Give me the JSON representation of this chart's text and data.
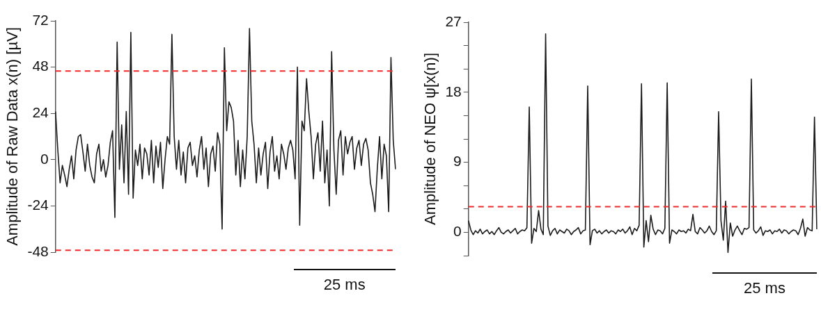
{
  "chart_data": [
    {
      "type": "line",
      "ylabel": "Amplitude of Raw Data x(n) [µV]",
      "tick_labels": "y",
      "grid": false,
      "legend": false,
      "categories": [
        null,
        null,
        null,
        null,
        null,
        null,
        null,
        null,
        null,
        null,
        null,
        null,
        null,
        null,
        null,
        null,
        null,
        null,
        null,
        null,
        null,
        null,
        null,
        null,
        null,
        null,
        null,
        null,
        null,
        null,
        null,
        null,
        null,
        null,
        null,
        null,
        null,
        null,
        null,
        null,
        null,
        null,
        null,
        null,
        null,
        null,
        null,
        null,
        null,
        null,
        null,
        null,
        null,
        null,
        null,
        null,
        null,
        null,
        null,
        null,
        null,
        null,
        null,
        null,
        null,
        null,
        null,
        null,
        null,
        null,
        null,
        null,
        null,
        null,
        null,
        null,
        null,
        null,
        null,
        null,
        null,
        null,
        null,
        null,
        null,
        null,
        null,
        null,
        null,
        null,
        null,
        null,
        null,
        null,
        null,
        null,
        null,
        null,
        null,
        null,
        null,
        null,
        null,
        null,
        null,
        null,
        null,
        null,
        null,
        null,
        null,
        null,
        null,
        null,
        null,
        null,
        null,
        null,
        null,
        null,
        null,
        null,
        null,
        null,
        null,
        null,
        null,
        null,
        null,
        null,
        null,
        null,
        null,
        null,
        null,
        null,
        null,
        null,
        null,
        null,
        null,
        null,
        null,
        null,
        null,
        null,
        null,
        null,
        null,
        null
      ],
      "series": [
        {
          "color": "#1a1a1a",
          "values": [
            25,
            5,
            -12,
            -3,
            -8,
            -14,
            -5,
            2,
            -10,
            5,
            12,
            13,
            4,
            -6,
            8,
            -3,
            -9,
            -12,
            3,
            8,
            -6,
            0,
            -9,
            -3,
            9,
            15,
            -30,
            61,
            -5,
            18,
            -12,
            25,
            -18,
            66,
            -20,
            5,
            -3,
            8,
            -10,
            6,
            3,
            -8,
            10,
            -12,
            7,
            -4,
            9,
            -15,
            0,
            12,
            8,
            65,
            12,
            -5,
            10,
            -8,
            4,
            -12,
            6,
            9,
            -3,
            2,
            -9,
            5,
            12,
            -5,
            6,
            -14,
            3,
            7,
            -6,
            14,
            8,
            -36,
            58,
            15,
            30,
            27,
            20,
            -8,
            10,
            -14,
            5,
            -10,
            12,
            68,
            20,
            8,
            -12,
            6,
            -8,
            3,
            9,
            -15,
            4,
            12,
            -6,
            2,
            -10,
            8,
            3,
            -5,
            6,
            10,
            5,
            -10,
            48,
            -34,
            20,
            15,
            42,
            25,
            12,
            -10,
            8,
            14,
            -6,
            20,
            -12,
            5,
            -24,
            56,
            5,
            -18,
            10,
            15,
            -8,
            12,
            3,
            9,
            12,
            -5,
            6,
            10,
            -3,
            8,
            11,
            5,
            -12,
            -18,
            -27,
            -5,
            12,
            -10,
            8,
            2,
            -27,
            53,
            10,
            -5
          ]
        }
      ],
      "ylim": [
        -48,
        72
      ],
      "yticks": [
        -48,
        -24,
        0,
        24,
        48,
        72
      ],
      "ref_lines": [
        {
          "axis": "y",
          "value": 46,
          "color": "#ee2a2a",
          "line_style": "dashed"
        },
        {
          "axis": "y",
          "value": -47,
          "color": "#ee2a2a",
          "line_style": "dashed"
        }
      ],
      "annotations": [
        "25 ms"
      ]
    },
    {
      "type": "line",
      "ylabel": "Amplitude of NEO ψ[x(n)]",
      "tick_labels": "y",
      "grid": false,
      "legend": false,
      "categories": [
        null,
        null,
        null,
        null,
        null,
        null,
        null,
        null,
        null,
        null,
        null,
        null,
        null,
        null,
        null,
        null,
        null,
        null,
        null,
        null,
        null,
        null,
        null,
        null,
        null,
        null,
        null,
        null,
        null,
        null,
        null,
        null,
        null,
        null,
        null,
        null,
        null,
        null,
        null,
        null,
        null,
        null,
        null,
        null,
        null,
        null,
        null,
        null,
        null,
        null,
        null,
        null,
        null,
        null,
        null,
        null,
        null,
        null,
        null,
        null,
        null,
        null,
        null,
        null,
        null,
        null,
        null,
        null,
        null,
        null,
        null,
        null,
        null,
        null,
        null,
        null,
        null,
        null,
        null,
        null,
        null,
        null,
        null,
        null,
        null,
        null,
        null,
        null,
        null,
        null,
        null,
        null,
        null,
        null,
        null,
        null,
        null,
        null,
        null,
        null,
        null,
        null,
        null,
        null,
        null,
        null,
        null,
        null,
        null,
        null,
        null,
        null,
        null,
        null,
        null,
        null,
        null,
        null,
        null,
        null,
        null,
        null,
        null,
        null,
        null,
        null,
        null,
        null,
        null,
        null,
        null,
        null,
        null,
        null,
        null,
        null,
        null,
        null,
        null,
        null,
        null,
        null,
        null,
        null,
        null,
        null,
        null,
        null,
        null,
        null
      ],
      "series": [
        {
          "color": "#1a1a1a",
          "values": [
            1.5,
            0.3,
            -0.3,
            0.2,
            -0.1,
            0.4,
            -0.2,
            0.1,
            0.3,
            -0.2,
            0.1,
            -0.3,
            0.2,
            0.6,
            0,
            -0.2,
            0.1,
            0.3,
            -0.1,
            0.2,
            0.5,
            -0.2,
            0.1,
            0.3,
            0.2,
            0.6,
            16.1,
            -1.4,
            0.5,
            0.1,
            2.8,
            0.4,
            -0.3,
            25.5,
            0.8,
            -0.4,
            0.2,
            0.5,
            -0.2,
            0.3,
            0.1,
            -0.1,
            0.4,
            0.2,
            -0.3,
            0.1,
            0.3,
            0.6,
            -0.2,
            0.2,
            0.3,
            18.8,
            -1.6,
            0.2,
            0.4,
            -0.1,
            0.2,
            -0.2,
            0.1,
            0.3,
            -0.1,
            0.2,
            0.1,
            -0.2,
            0.3,
            0.1,
            0.4,
            -0.1,
            0.2,
            0.7,
            -0.3,
            0.5,
            0.2,
            0.9,
            19.1,
            -1.9,
            1.5,
            -1.2,
            2.2,
            0.4,
            -0.3,
            0.3,
            0.2,
            -0.2,
            0.5,
            19.2,
            -1.4,
            0.3,
            0.1,
            -0.2,
            0.3,
            0.1,
            0.2,
            -0.1,
            0.4,
            0.2,
            2.3,
            0.1,
            -0.2,
            0.6,
            0.3,
            -0.1,
            0.2,
            0.8,
            0.1,
            -0.3,
            0.2,
            15.5,
            1.5,
            -1,
            4,
            -2.6,
            1.2,
            -0.5,
            0.3,
            0.8,
            0.2,
            -0.3,
            0.5,
            0.4,
            0.6,
            19.7,
            0.3,
            -0.1,
            0.2,
            0.7,
            -0.4,
            0.2,
            0.1,
            0.3,
            -0.2,
            0.2,
            0.1,
            0.4,
            -0.1,
            0.3,
            0.2,
            -0.2,
            0.1,
            0.3,
            0.2,
            -0.3,
            0.5,
            1.7,
            -0.5,
            0.6,
            0.3,
            0.2,
            14.8,
            0.4
          ]
        }
      ],
      "ylim": [
        -3,
        27
      ],
      "yticks": [
        {
          "value": -3,
          "label": null
        },
        0,
        {
          "value": 3,
          "label": null
        },
        {
          "value": 6,
          "label": null
        },
        9,
        {
          "value": 12,
          "label": null
        },
        {
          "value": 15,
          "label": null
        },
        18,
        {
          "value": 21,
          "label": null
        },
        {
          "value": 24,
          "label": null
        },
        27
      ],
      "ref_lines": [
        {
          "axis": "y",
          "value": 3.3,
          "color": "#ee2a2a",
          "line_style": "dashed"
        }
      ],
      "annotations": [
        "25 ms"
      ]
    }
  ]
}
